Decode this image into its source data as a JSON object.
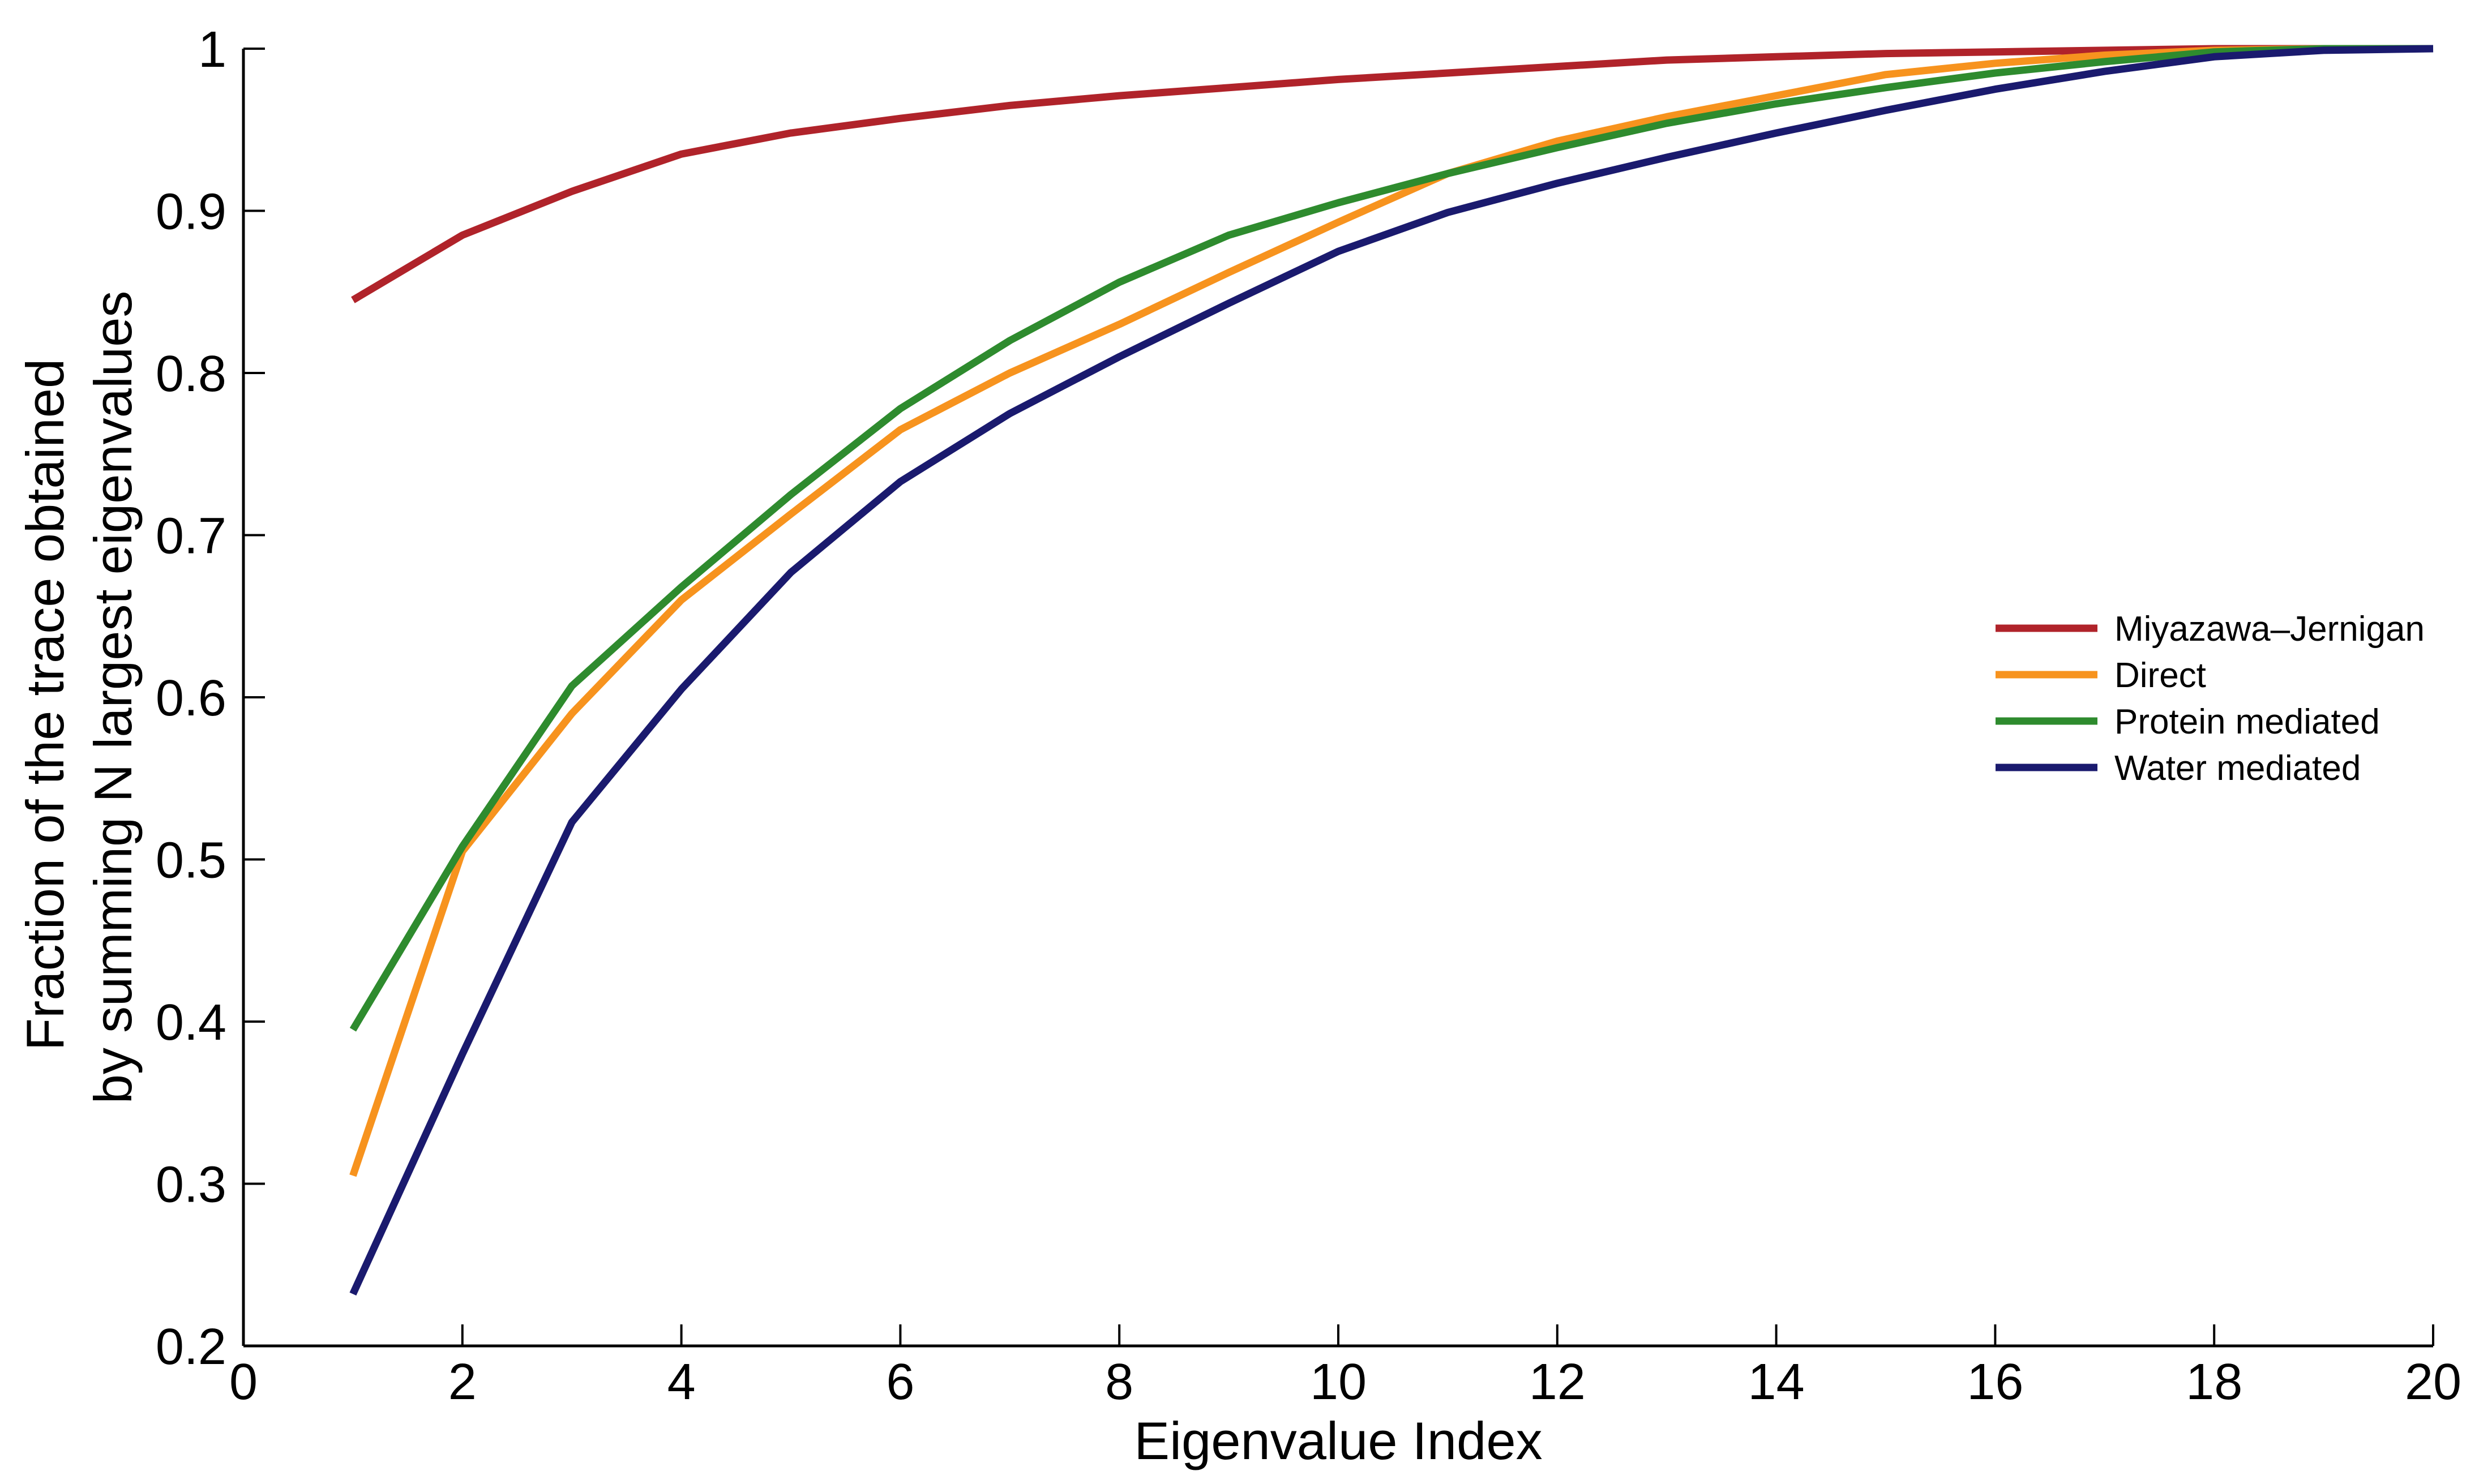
{
  "chart_data": {
    "type": "line",
    "xlabel": "Eigenvalue Index",
    "ylabel_lines": [
      "Fraction of the trace obtained",
      "by summing N largest eigenvalues"
    ],
    "xlim": [
      0,
      20
    ],
    "ylim": [
      0.2,
      1
    ],
    "xticks": [
      0,
      2,
      4,
      6,
      8,
      10,
      12,
      14,
      16,
      18,
      20
    ],
    "yticks": [
      0.2,
      0.3,
      0.4,
      0.5,
      0.6,
      0.7,
      0.8,
      0.9,
      1
    ],
    "ytick_labels": [
      "0.2",
      "0.3",
      "0.4",
      "0.5",
      "0.6",
      "0.7",
      "0.8",
      "0.9",
      "1"
    ],
    "grid": false,
    "legend_position": "right",
    "x": [
      1,
      2,
      3,
      4,
      5,
      6,
      7,
      8,
      9,
      10,
      11,
      12,
      13,
      14,
      15,
      16,
      17,
      18,
      19,
      20
    ],
    "series": [
      {
        "name": "Miyazawa–Jernigan",
        "color": "#b0232a",
        "values": [
          0.845,
          0.885,
          0.912,
          0.935,
          0.948,
          0.957,
          0.965,
          0.971,
          0.976,
          0.981,
          0.985,
          0.989,
          0.993,
          0.995,
          0.997,
          0.998,
          0.999,
          1.0,
          1.0,
          1.0
        ]
      },
      {
        "name": "Direct",
        "color": "#f7931e",
        "values": [
          0.305,
          0.505,
          0.59,
          0.66,
          0.713,
          0.765,
          0.8,
          0.83,
          0.862,
          0.893,
          0.923,
          0.943,
          0.958,
          0.971,
          0.984,
          0.991,
          0.996,
          0.999,
          1.0,
          1.0
        ]
      },
      {
        "name": "Protein mediated",
        "color": "#2e8b2e",
        "values": [
          0.395,
          0.508,
          0.607,
          0.668,
          0.725,
          0.778,
          0.82,
          0.856,
          0.885,
          0.905,
          0.923,
          0.939,
          0.954,
          0.966,
          0.976,
          0.985,
          0.992,
          0.998,
          1.0,
          1.0
        ]
      },
      {
        "name": "Water mediated",
        "color": "#1a1a6e",
        "values": [
          0.232,
          0.38,
          0.523,
          0.605,
          0.677,
          0.733,
          0.775,
          0.81,
          0.843,
          0.875,
          0.899,
          0.917,
          0.933,
          0.948,
          0.962,
          0.975,
          0.986,
          0.995,
          0.999,
          1.0
        ]
      }
    ]
  }
}
